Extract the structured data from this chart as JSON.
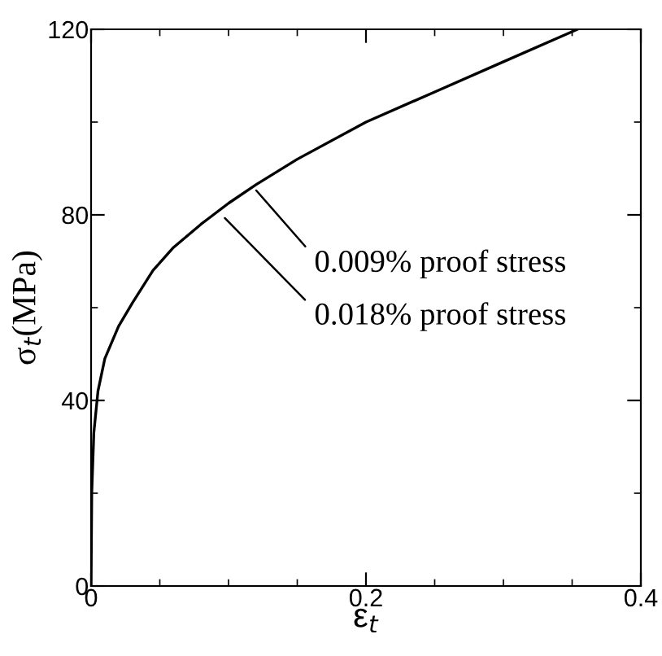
{
  "chart_data": {
    "type": "line",
    "xlabel": "ε$_{t}$",
    "ylabel": "σ$_{t}$(MPa)",
    "xlim": [
      0,
      0.4
    ],
    "ylim": [
      0,
      120
    ],
    "xticks": [
      0,
      {
        "value": 0.2,
        "label": "0.2"
      },
      {
        "value": 0.4,
        "label": "0.4"
      }
    ],
    "yticks": [
      0,
      40,
      80,
      120
    ],
    "grid": false,
    "legend": false,
    "marker": "none",
    "line_style": "solid",
    "series": [
      {
        "color": "#000000",
        "x": [
          0,
          0.0005,
          0.002,
          0.005,
          0.01,
          0.02,
          0.03,
          0.045,
          0.06,
          0.08,
          0.1,
          0.12,
          0.15,
          0.2,
          0.25,
          0.3,
          0.354
        ],
        "values": [
          0,
          20,
          33,
          42,
          49,
          56,
          61,
          68,
          73,
          78,
          82.5,
          86.5,
          92,
          100,
          106.5,
          113,
          120
        ]
      }
    ],
    "annotations": [
      {
        "text": "0.009% proof stress",
        "x": 0.118,
        "y": 86
      },
      {
        "text": "0.018% proof stress",
        "x": 0.095,
        "y": 80
      }
    ]
  }
}
